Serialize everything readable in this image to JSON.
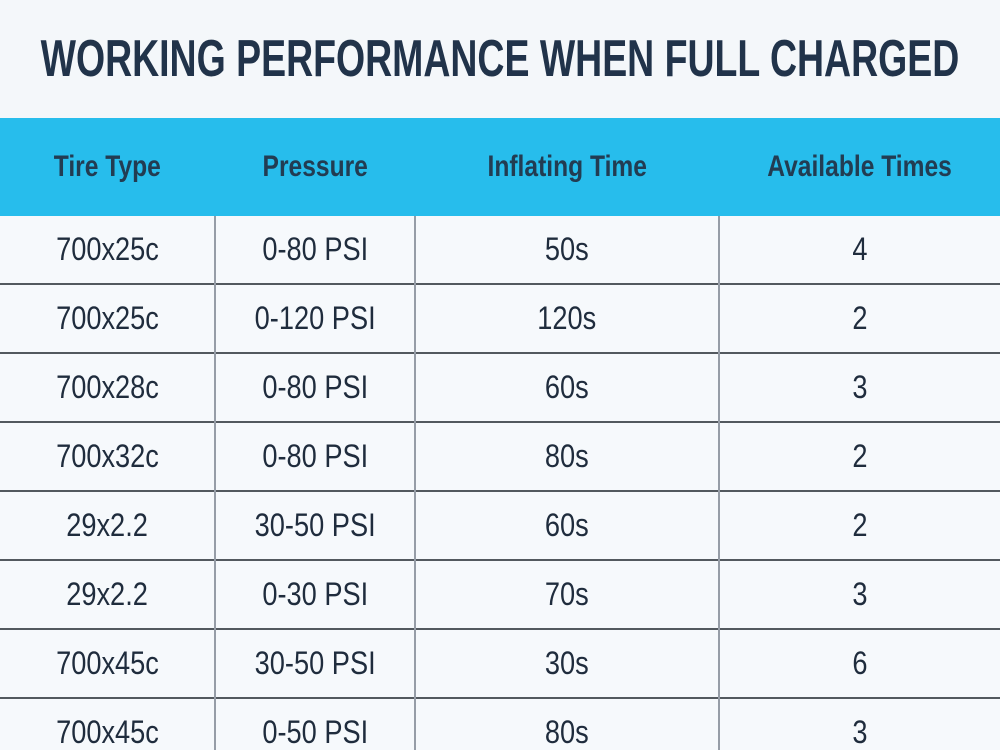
{
  "colors": {
    "page_bg": "#f4f7fa",
    "cell_bg": "#f6f9fc",
    "header_bg": "#27bdec",
    "title_text": "#21334a",
    "header_text": "#223c52",
    "cell_text": "#1f2c3d",
    "row_divider": "#53595f",
    "column_divider": "#969da7"
  },
  "chart_data": {
    "type": "table",
    "title": "WORKING PERFORMANCE WHEN FULL CHARGED",
    "columns": [
      "Tire Type",
      "Pressure",
      "Inflating Time",
      "Available Times"
    ],
    "rows": [
      [
        "700x25c",
        "0-80 PSI",
        "50s",
        "4"
      ],
      [
        "700x25c",
        "0-120 PSI",
        "120s",
        "2"
      ],
      [
        "700x28c",
        "0-80 PSI",
        "60s",
        "3"
      ],
      [
        "700x32c",
        "0-80 PSI",
        "80s",
        "2"
      ],
      [
        "29x2.2",
        "30-50 PSI",
        "60s",
        "2"
      ],
      [
        "29x2.2",
        "0-30 PSI",
        "70s",
        "3"
      ],
      [
        "700x45c",
        "30-50 PSI",
        "30s",
        "6"
      ],
      [
        "700x45c",
        "0-50 PSI",
        "80s",
        "3"
      ]
    ]
  }
}
